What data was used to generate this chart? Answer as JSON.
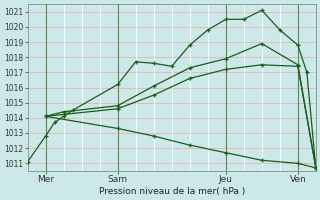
{
  "title": "Pression niveau de la mer( hPa )",
  "bg_color": "#cce8e8",
  "plot_bg_color": "#cce8e8",
  "grid_color": "#ffffff",
  "hgrid_color": "#e8b0b0",
  "line_color": "#1a5c1a",
  "xlim": [
    0,
    96
  ],
  "ylim": [
    1010.5,
    1021.5
  ],
  "yticks": [
    1011,
    1012,
    1013,
    1014,
    1015,
    1016,
    1017,
    1018,
    1019,
    1020,
    1021
  ],
  "xtick_labels": [
    "Mer",
    "Sam",
    "Jeu",
    "Ven"
  ],
  "xtick_positions": [
    6,
    30,
    66,
    90
  ],
  "vline_positions": [
    6,
    30,
    66,
    90
  ],
  "lines": [
    {
      "x": [
        0,
        6,
        9,
        12,
        15,
        30,
        36,
        42,
        48,
        54,
        60,
        66,
        72,
        78,
        84,
        90,
        93,
        96
      ],
      "y": [
        1011.1,
        1012.8,
        1013.7,
        1014.1,
        1014.5,
        1016.2,
        1017.7,
        1017.6,
        1017.4,
        1018.8,
        1019.8,
        1020.5,
        1020.5,
        1021.1,
        1019.8,
        1018.8,
        1017.0,
        1010.7
      ]
    },
    {
      "x": [
        6,
        12,
        30,
        42,
        54,
        66,
        78,
        90,
        96
      ],
      "y": [
        1014.1,
        1014.4,
        1014.8,
        1016.1,
        1017.3,
        1017.9,
        1018.9,
        1017.5,
        1010.7
      ]
    },
    {
      "x": [
        6,
        30,
        42,
        54,
        66,
        78,
        90,
        96
      ],
      "y": [
        1014.1,
        1014.6,
        1015.5,
        1016.6,
        1017.2,
        1017.5,
        1017.4,
        1010.7
      ]
    },
    {
      "x": [
        6,
        30,
        42,
        54,
        66,
        78,
        90,
        96
      ],
      "y": [
        1014.1,
        1013.3,
        1012.8,
        1012.2,
        1011.7,
        1011.2,
        1011.0,
        1010.7
      ]
    }
  ]
}
